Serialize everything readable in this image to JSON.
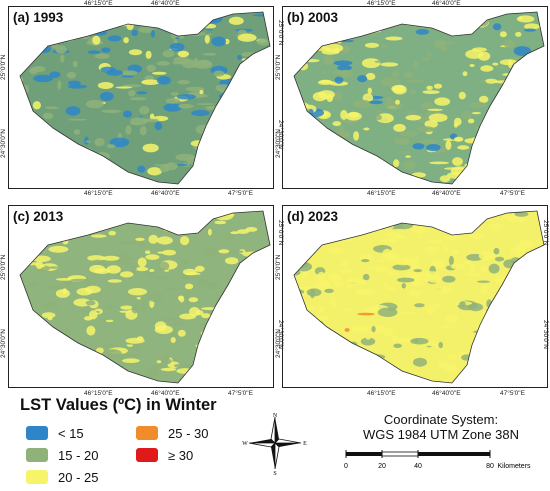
{
  "panels": [
    {
      "id": "a",
      "title": "(a) 1993",
      "base": "#6fa07a",
      "pattern": "1993"
    },
    {
      "id": "b",
      "title": "(b) 2003",
      "base": "#7fb083",
      "pattern": "2003"
    },
    {
      "id": "c",
      "title": "(c) 2013",
      "base": "#8fb47e",
      "pattern": "2013"
    },
    {
      "id": "d",
      "title": "(d) 2023",
      "base": "#f3f06a",
      "pattern": "2023"
    }
  ],
  "ticks": {
    "top_left": "46°15'0\"E",
    "top_mid": "46°40'0\"E",
    "top_right": "47°5'0\"E",
    "lat_upper": "25°0'0\"N",
    "lat_lower": "24°30'0\"N"
  },
  "legend": {
    "title": "LST Values (ºC) in Winter",
    "items": [
      {
        "label": "< 15",
        "color": "#2e86c8"
      },
      {
        "label": "15 - 20",
        "color": "#8fb27a"
      },
      {
        "label": "20 - 25",
        "color": "#f7f46a"
      },
      {
        "label": "25 - 30",
        "color": "#f08c2a"
      },
      {
        "label": "≥ 30",
        "color": "#e01a1a"
      }
    ]
  },
  "compass": {
    "n": "N",
    "s": "S",
    "e": "E",
    "w": "W"
  },
  "coordinate_system": {
    "line1": "Coordinate System:",
    "line2": "WGS 1984 UTM Zone 38N"
  },
  "scale": {
    "ticks": [
      "0",
      "20",
      "40",
      "80"
    ],
    "unit": "Kilometers"
  }
}
